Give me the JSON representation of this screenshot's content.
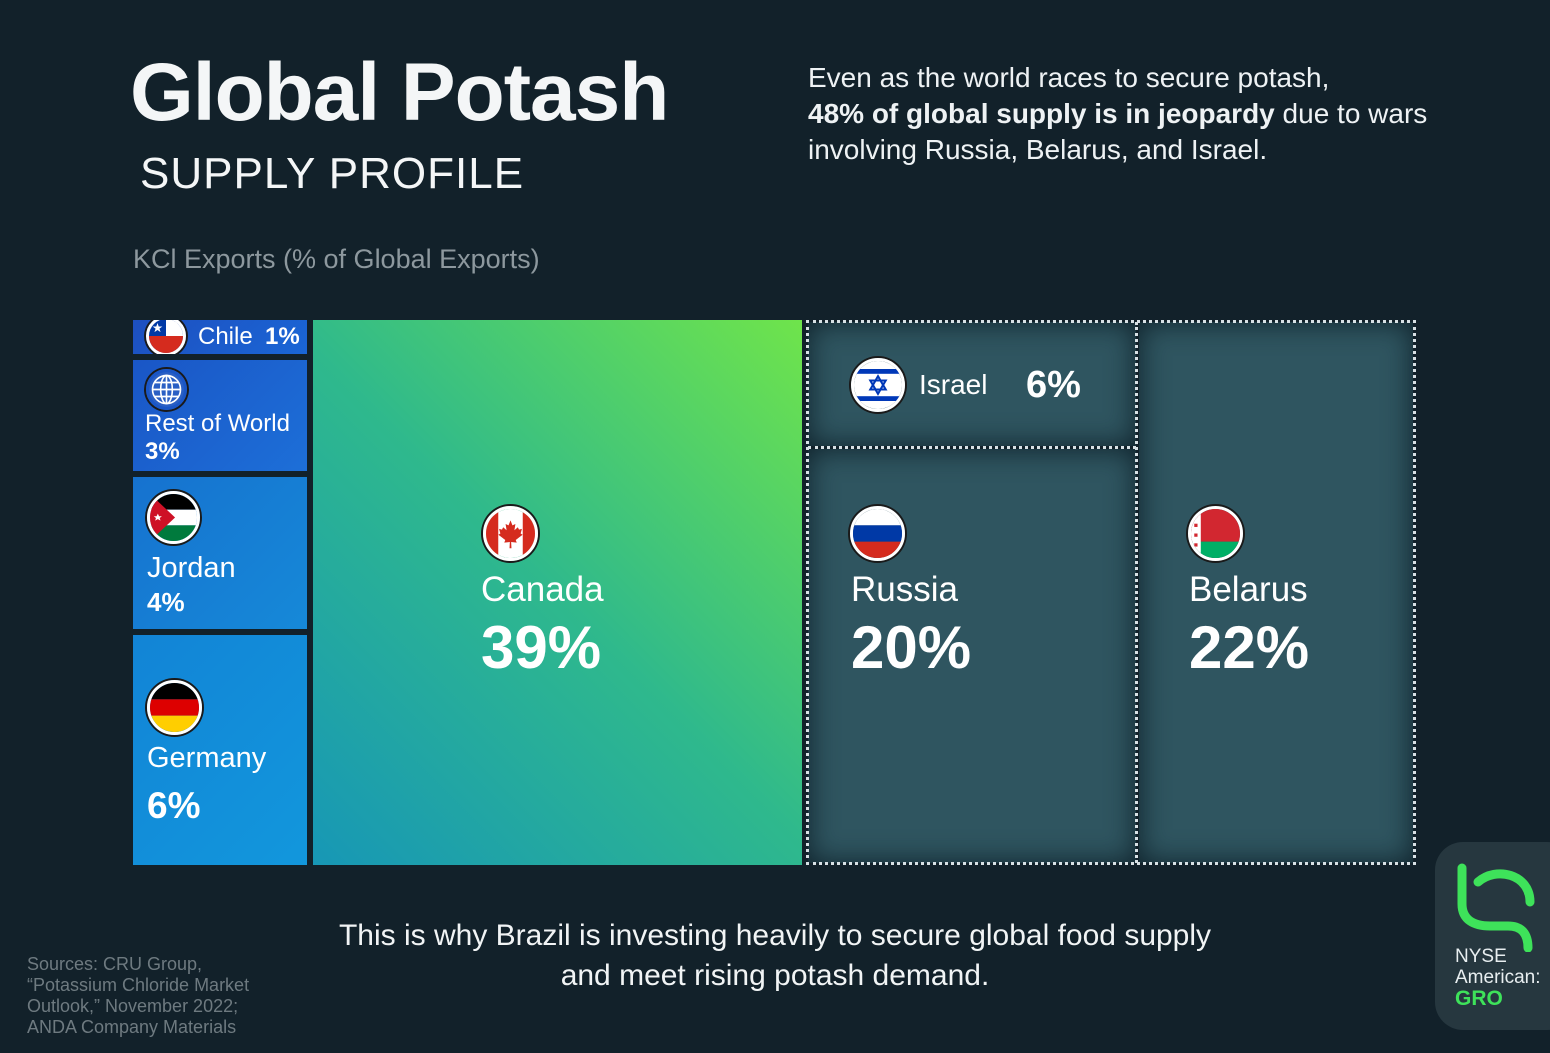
{
  "header": {
    "title": "Global Potash",
    "subtitle": "SUPPLY PROFILE",
    "intro_part1": "Even as the world races to secure potash,",
    "intro_bold": "48% of global supply is in jeopardy",
    "intro_part2": "due to wars involving Russia, Belarus, and Israel."
  },
  "chart_data": {
    "type": "treemap",
    "title": "Global Potash",
    "subtitle": "SUPPLY PROFILE",
    "value_label": "KCl Exports (% of Global Exports)",
    "unit": "%",
    "series": [
      {
        "name": "Chile",
        "value": 1,
        "label": "1%"
      },
      {
        "name": "Rest of World",
        "value": 3,
        "label": "3%"
      },
      {
        "name": "Jordan",
        "value": 4,
        "label": "4%"
      },
      {
        "name": "Germany",
        "value": 6,
        "label": "6%"
      },
      {
        "name": "Canada",
        "value": 39,
        "label": "39%"
      },
      {
        "name": "Israel",
        "value": 6,
        "label": "6%"
      },
      {
        "name": "Russia",
        "value": 20,
        "label": "20%"
      },
      {
        "name": "Belarus",
        "value": 22,
        "label": "22%"
      }
    ],
    "highlighted_group": [
      "Israel",
      "Russia",
      "Belarus"
    ]
  },
  "footer": {
    "line1": "This is why Brazil is investing heavily to secure global food supply",
    "line2": "and meet rising potash demand."
  },
  "sources": {
    "line1": "Sources: CRU Group,",
    "line2": "“Potassium Chloride Market",
    "line3": "Outlook,” November 2022;",
    "line4": "ANDA Company Materials"
  },
  "logo": {
    "exchange_line1": "NYSE",
    "exchange_line2": "American:",
    "ticker": "GRO",
    "icon": "gro-leaf-logo-icon"
  },
  "colors": {
    "background": "#12212a",
    "canada_gradient": [
      "#1797b6",
      "#6fe44b"
    ],
    "at_risk_fill": "#2f5560",
    "other_tiles": "#1a66d6",
    "logo_green": "#3ee25a"
  }
}
